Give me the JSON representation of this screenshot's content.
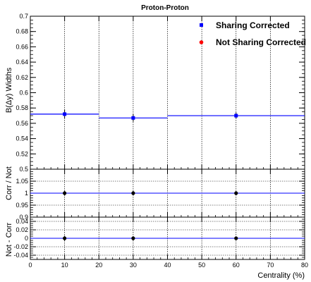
{
  "chart_data": [
    {
      "type": "scatter",
      "title": "Proton-Proton",
      "xlabel": "",
      "ylabel": "B(Δy) Widths",
      "xlim": [
        0,
        80
      ],
      "ylim": [
        0.5,
        0.7
      ],
      "xticks": [
        0,
        10,
        20,
        30,
        40,
        50,
        60,
        70,
        80
      ],
      "yticks": [
        "0.52",
        "0.54",
        "0.56",
        "0.58",
        "0.6",
        "0.62",
        "0.64",
        "0.66",
        "0.68",
        "0.7"
      ],
      "ytick_values": [
        0.52,
        0.54,
        0.56,
        0.58,
        0.6,
        0.62,
        0.64,
        0.66,
        0.68,
        0.7
      ],
      "bottom_label": "0.5",
      "grid": "vertical",
      "legend_placement": "top-right",
      "series": [
        {
          "name": "Sharing Corrected",
          "color": "#0000ff",
          "marker": "square",
          "x": [
            10,
            30,
            60
          ],
          "y": [
            0.572,
            0.567,
            0.57
          ],
          "yerr": [
            0.006,
            0.005,
            0.004
          ],
          "steps": [
            [
              0,
              20,
              0.572
            ],
            [
              20,
              40,
              0.567
            ],
            [
              40,
              80,
              0.57
            ]
          ]
        },
        {
          "name": "Not Sharing Corrected",
          "color": "#ff0000",
          "marker": "circle",
          "x": [
            10,
            30,
            60
          ],
          "y": [
            0.572,
            0.567,
            0.57
          ],
          "yerr": [
            0.006,
            0.005,
            0.004
          ]
        }
      ]
    },
    {
      "type": "scatter",
      "title": "",
      "xlabel": "",
      "ylabel": "Corr / Not",
      "xlim": [
        0,
        80
      ],
      "ylim": [
        0.9,
        1.1
      ],
      "yticks": [
        "0.95",
        "1",
        "1.05"
      ],
      "ytick_values": [
        0.95,
        1.0,
        1.05
      ],
      "bottom_label": "0.9",
      "reference_line": 1.0,
      "grid": "both",
      "series": [
        {
          "color": "#000000",
          "x": [
            10,
            30,
            60
          ],
          "y": [
            1.0,
            1.0,
            1.0
          ],
          "yerr": [
            0.011,
            0.01,
            0.008
          ]
        }
      ]
    },
    {
      "type": "scatter",
      "title": "",
      "xlabel": "Centrality (%)",
      "ylabel": "Not - Corr",
      "xlim": [
        0,
        80
      ],
      "ylim": [
        -0.05,
        0.05
      ],
      "yticks": [
        "-0.04",
        "-0.02",
        "0",
        "0.02",
        "0.04"
      ],
      "ytick_values": [
        -0.04,
        -0.02,
        0,
        0.02,
        0.04
      ],
      "xticks": [
        "0",
        "10",
        "20",
        "30",
        "40",
        "50",
        "60",
        "70",
        "80"
      ],
      "reference_line": 0,
      "grid": "both",
      "series": [
        {
          "color": "#000000",
          "x": [
            10,
            30,
            60
          ],
          "y": [
            0,
            0,
            0
          ],
          "yerr": [
            0.006,
            0.005,
            0.004
          ]
        }
      ]
    }
  ]
}
